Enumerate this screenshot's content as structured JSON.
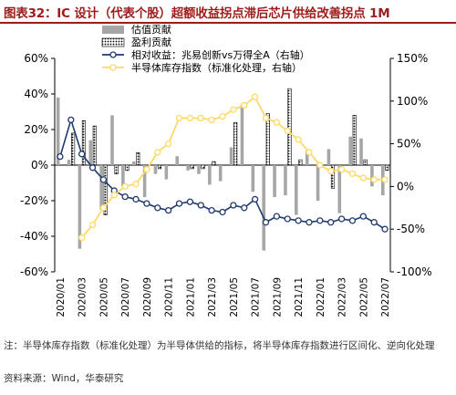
{
  "title": "图表32：IC 设计（代表个股）超额收益拐点滞后芯片供给改善拐点 1M",
  "note": "注：半导体库存指数（标准化处理）为半导体供给的指标，将半导体库存指数进行区间化、逆向化处理",
  "source": "资料来源：Wind，华泰研究",
  "chart_data": {
    "type": "bar+line",
    "categories": [
      "2020/01",
      "2020/02",
      "2020/03",
      "2020/04",
      "2020/05",
      "2020/06",
      "2020/07",
      "2020/08",
      "2020/09",
      "2020/10",
      "2020/11",
      "2020/12",
      "2021/01",
      "2021/02",
      "2021/03",
      "2021/04",
      "2021/05",
      "2021/06",
      "2021/07",
      "2021/08",
      "2021/09",
      "2021/10",
      "2021/11",
      "2021/12",
      "2022/01",
      "2022/02",
      "2022/03",
      "2022/04",
      "2022/05",
      "2022/06",
      "2022/07"
    ],
    "x_tick_labels": [
      "2020/01",
      "2020/03",
      "2020/05",
      "2020/07",
      "2020/09",
      "2020/11",
      "2021/01",
      "2021/03",
      "2021/05",
      "2021/07",
      "2021/09",
      "2021/11",
      "2022/01",
      "2022/03",
      "2022/05",
      "2022/07"
    ],
    "left_axis": {
      "ylim": [
        -60,
        60
      ],
      "ticks": [
        "-60%",
        "-40%",
        "-20%",
        "0%",
        "20%",
        "40%",
        "60%"
      ]
    },
    "right_axis": {
      "ylim": [
        -100,
        150
      ],
      "ticks": [
        "-100%",
        "-50%",
        "0%",
        "50%",
        "100%",
        "150%"
      ]
    },
    "legend_placement": "top-center",
    "series": [
      {
        "name": "估值贡献",
        "kind": "bar",
        "axis": "left",
        "color": "#a6a6a6",
        "values": [
          38,
          3,
          -47,
          14,
          -25,
          28,
          -12,
          2,
          -18,
          -5,
          -8,
          5,
          -3,
          -5,
          -11,
          -9,
          10,
          34,
          -15,
          -48,
          -18,
          -17,
          -28,
          8,
          -20,
          9,
          -27,
          16,
          15,
          -12,
          -17
        ]
      },
      {
        "name": "盈利贡献",
        "kind": "bar",
        "axis": "left",
        "color": "#000000",
        "pattern": "dots",
        "values": [
          0,
          18,
          25,
          22,
          -28,
          -5,
          -3,
          7,
          0,
          -2,
          0,
          0,
          -2,
          -2,
          2,
          0,
          24,
          0,
          0,
          29,
          0,
          43,
          3,
          0,
          0,
          -13,
          0,
          28,
          3,
          0,
          -3
        ]
      },
      {
        "name": "相对收益：兆易创新vs万得全A（右轴）",
        "kind": "line",
        "axis": "right",
        "color": "#1f3a6e",
        "values": [
          35,
          78,
          38,
          22,
          8,
          -5,
          -12,
          -15,
          -20,
          -25,
          -28,
          -20,
          -18,
          -22,
          -28,
          -30,
          -22,
          -25,
          -15,
          -42,
          -35,
          -38,
          -40,
          -42,
          -40,
          -42,
          -38,
          -40,
          -35,
          -42,
          -50
        ]
      },
      {
        "name": "半导体库存指数（标准化处理，右轴）",
        "kind": "line",
        "axis": "right",
        "color": "#ffd966",
        "values": [
          null,
          null,
          -60,
          -45,
          -25,
          -10,
          0,
          3,
          20,
          40,
          50,
          80,
          80,
          80,
          78,
          82,
          90,
          95,
          105,
          80,
          75,
          65,
          55,
          40,
          25,
          18,
          20,
          15,
          10,
          8,
          8
        ]
      }
    ]
  }
}
